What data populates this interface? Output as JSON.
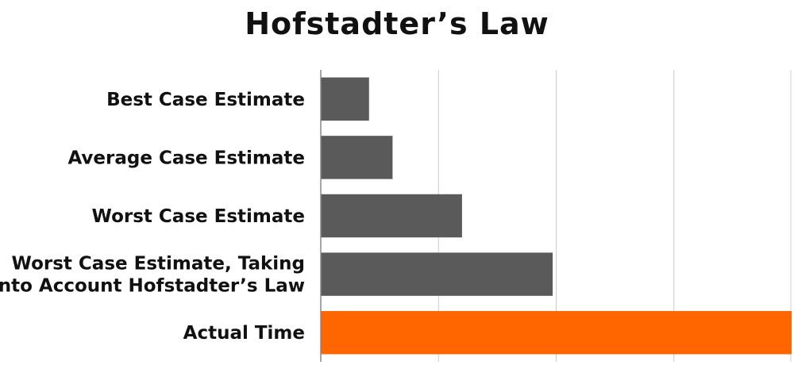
{
  "chart_data": {
    "type": "bar",
    "orientation": "horizontal",
    "title": "Hofstadter’s Law",
    "xlabel": "",
    "ylabel": "",
    "categories": [
      "Best Case Estimate",
      "Average Case Estimate",
      "Worst Case Estimate",
      "Worst Case Estimate, Taking\nInto Account Hofstadter’s Law",
      "Actual Time"
    ],
    "values": [
      0.41,
      0.61,
      1.2,
      1.97,
      4.0
    ],
    "xlim": [
      0,
      4
    ],
    "grid": true,
    "tick_labels_shown": false,
    "colors": {
      "estimate": "#5a5a5a",
      "actual": "#ff6600",
      "gridline": "#cccccc",
      "axis": "#888888"
    },
    "bar_colors": [
      "#5a5a5a",
      "#5a5a5a",
      "#5a5a5a",
      "#5a5a5a",
      "#ff6600"
    ]
  }
}
